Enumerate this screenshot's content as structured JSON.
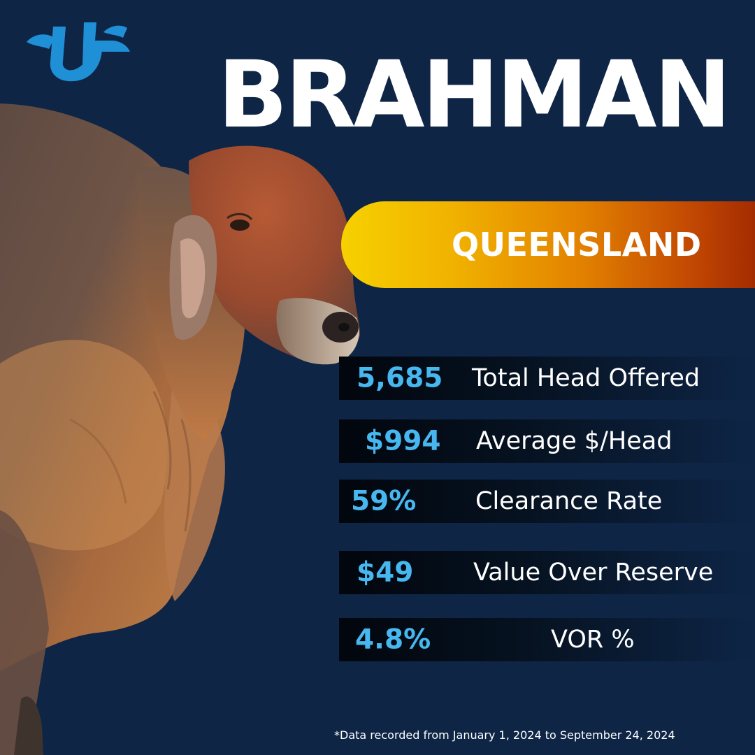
{
  "brand": {
    "logo_icon": "tt-logo-icon",
    "color": "#1f8fd6"
  },
  "title": "BRAHMAN",
  "region": "QUEENSLAND",
  "colors": {
    "background": "#0e2546",
    "value_accent": "#47b7f0",
    "banner_start": "#f6d100",
    "banner_end": "#9b2300"
  },
  "stats": [
    {
      "value": "5,685",
      "label": "Total Head Offered"
    },
    {
      "value": "$994",
      "label": "Average $/Head"
    },
    {
      "value": "59%",
      "label": "Clearance Rate"
    },
    {
      "value": "$49",
      "label": "Value Over Reserve"
    },
    {
      "value": "4.8%",
      "label": "VOR %"
    }
  ],
  "footnote": "*Data recorded from January 1, 2024 to September 24, 2024",
  "image": {
    "subject": "brahman-bull-photo"
  }
}
